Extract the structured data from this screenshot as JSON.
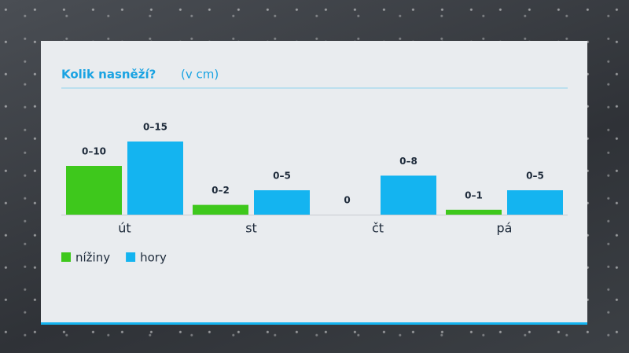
{
  "chart_data": {
    "type": "bar",
    "title": "Kolik nasněží?",
    "subtitle": "(v cm)",
    "categories": [
      "út",
      "st",
      "čt",
      "pá"
    ],
    "series": [
      {
        "name": "nížiny",
        "color": "#3ec81c",
        "values": [
          10,
          2,
          0,
          1
        ],
        "value_labels": [
          "0–10",
          "0–2",
          "0",
          "0–1"
        ]
      },
      {
        "name": "hory",
        "color": "#14b4f0",
        "values": [
          15,
          5,
          8,
          5
        ],
        "value_labels": [
          "0–15",
          "0–5",
          "0–8",
          "0–5"
        ]
      }
    ],
    "legend": "bottom-left"
  }
}
